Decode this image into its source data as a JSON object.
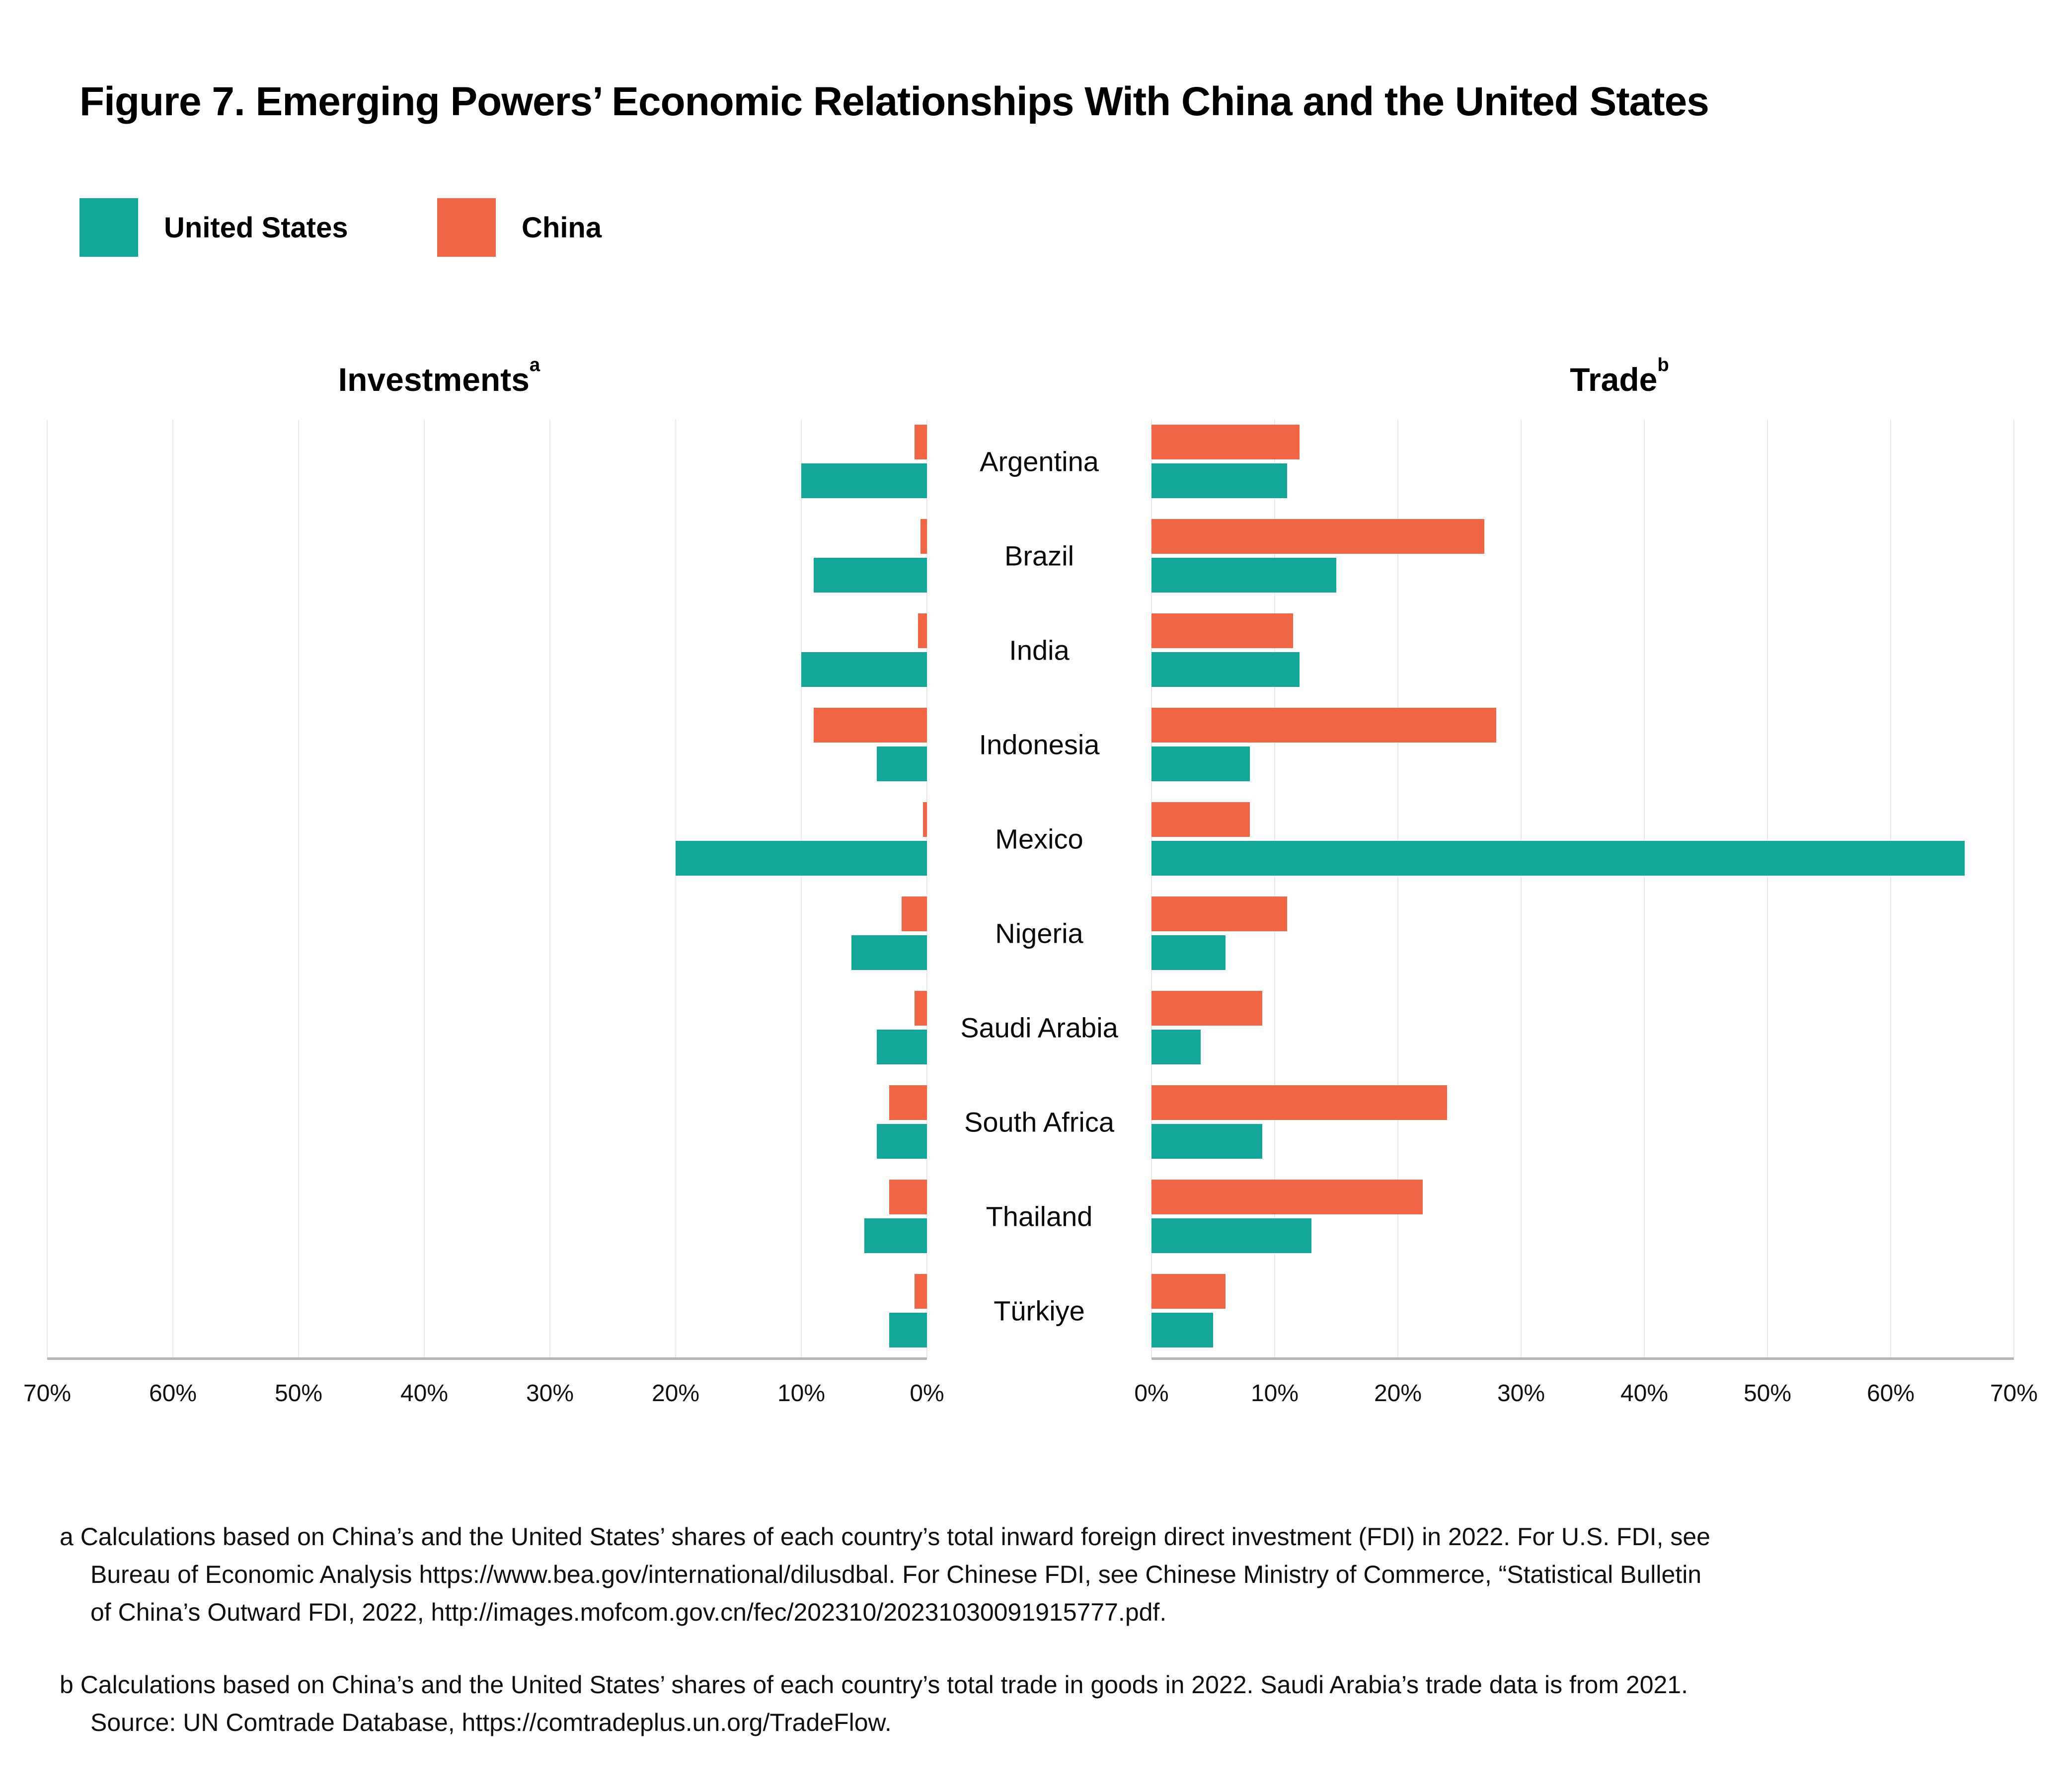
{
  "figure": {
    "title": "Figure 7. Emerging Powers’ Economic Relationships With China and the United States",
    "legend": [
      {
        "label": "United States",
        "color": "#13A69B"
      },
      {
        "label": "China",
        "color": "#F06543"
      }
    ]
  },
  "chart_data": {
    "type": "bar",
    "subtype": "diverging-horizontal-paired",
    "grid": true,
    "legend_position": "top-left",
    "categories": [
      "Argentina",
      "Brazil",
      "India",
      "Indonesia",
      "Mexico",
      "Nigeria",
      "Saudi Arabia",
      "South Africa",
      "Thailand",
      "Türkiye"
    ],
    "series_colors": {
      "United States": "#13A69B",
      "China": "#F06543"
    },
    "units": "percent",
    "panels": [
      {
        "id": "investments",
        "title": "Investments",
        "superscript": "a",
        "side": "left",
        "xlim": [
          0,
          70
        ],
        "ticks": [
          "70%",
          "60%",
          "50%",
          "40%",
          "30%",
          "20%",
          "10%",
          "0%"
        ],
        "series": [
          {
            "name": "China",
            "values": [
              1,
              0.5,
              0.7,
              9,
              0.3,
              2,
              1,
              3,
              3,
              1
            ]
          },
          {
            "name": "United States",
            "values": [
              10,
              9,
              10,
              4,
              20,
              6,
              4,
              4,
              5,
              3
            ]
          }
        ]
      },
      {
        "id": "trade",
        "title": "Trade",
        "superscript": "b",
        "side": "right",
        "xlim": [
          0,
          70
        ],
        "ticks": [
          "0%",
          "10%",
          "20%",
          "30%",
          "40%",
          "50%",
          "60%",
          "70%"
        ],
        "series": [
          {
            "name": "China",
            "values": [
              12,
              27,
              11.5,
              28,
              8,
              11,
              9,
              24,
              22,
              6
            ]
          },
          {
            "name": "United States",
            "values": [
              11,
              15,
              12,
              8,
              66,
              6,
              4,
              9,
              13,
              5
            ]
          }
        ]
      }
    ]
  },
  "footnotes": {
    "a_lines": [
      "a Calculations based on China’s and the United States’ shares of each country’s total inward foreign direct investment (FDI) in 2022. For U.S. FDI, see",
      "Bureau of Economic Analysis https://www.bea.gov/international/dilusdbal. For Chinese FDI, see Chinese Ministry of Commerce, “Statistical Bulletin",
      "of China’s Outward FDI, 2022, http://images.mofcom.gov.cn/fec/202310/20231030091915777.pdf."
    ],
    "b_lines": [
      "b Calculations based on China’s and the United States’ shares of each country’s total trade in goods in 2022. Saudi Arabia’s trade data is from 2021.",
      "Source: UN Comtrade Database, https://comtradeplus.un.org/TradeFlow."
    ]
  }
}
